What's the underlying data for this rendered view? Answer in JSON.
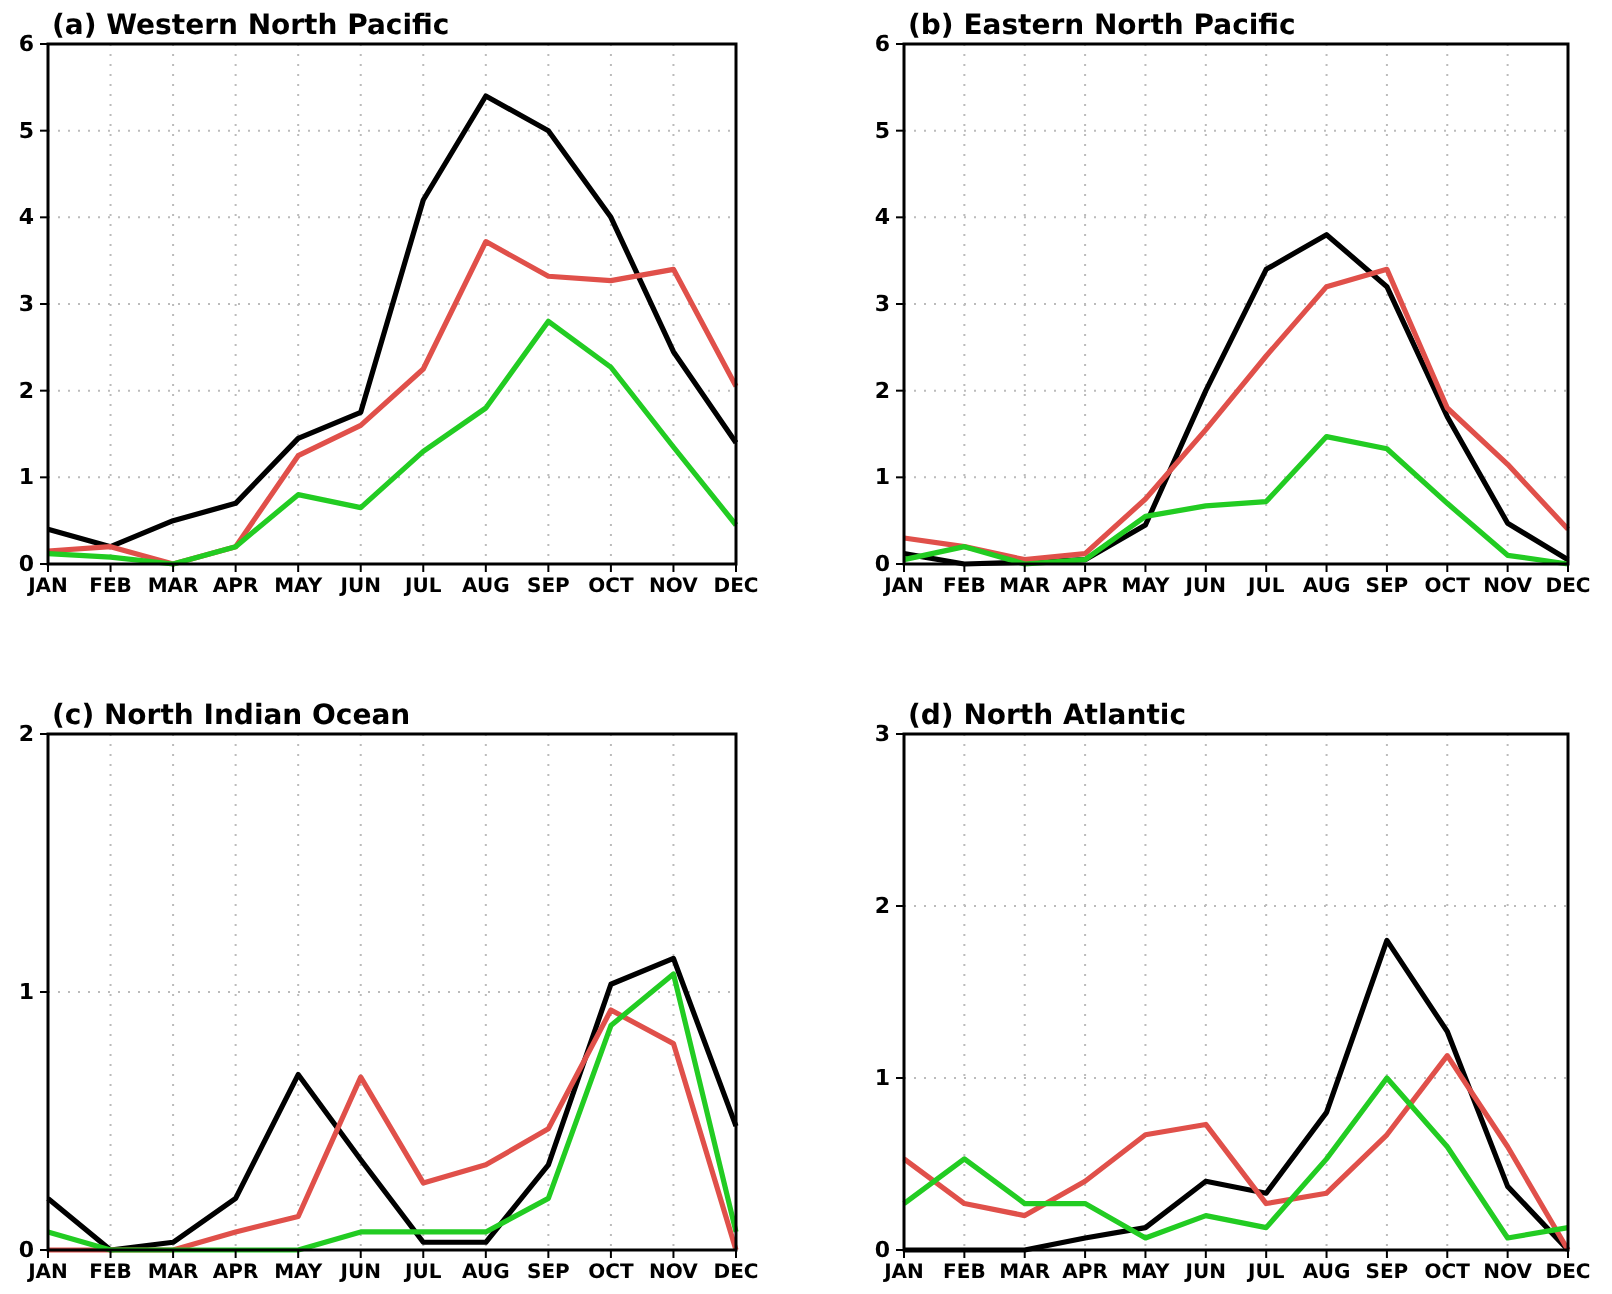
{
  "chart_data": [
    {
      "type": "line",
      "title": "(a) Western North Pacific",
      "categories": [
        "JAN",
        "FEB",
        "MAR",
        "APR",
        "MAY",
        "JUN",
        "JUL",
        "AUG",
        "SEP",
        "OCT",
        "NOV",
        "DEC"
      ],
      "ylim": [
        0,
        6
      ],
      "yticks": [
        0,
        1,
        2,
        3,
        4,
        5,
        6
      ],
      "grid": true,
      "line_style": "solid",
      "series": [
        {
          "color": "#000000",
          "values": [
            0.4,
            0.2,
            0.5,
            0.7,
            1.45,
            1.75,
            4.2,
            5.4,
            5.0,
            4.0,
            2.45,
            1.4
          ]
        },
        {
          "color": "#e0504a",
          "values": [
            0.15,
            0.2,
            0,
            0.2,
            1.25,
            1.6,
            2.25,
            3.72,
            3.32,
            3.27,
            3.4,
            2.05
          ]
        },
        {
          "color": "#22cc22",
          "values": [
            0.12,
            0.08,
            0,
            0.2,
            0.8,
            0.65,
            1.3,
            1.8,
            2.8,
            2.27,
            1.35,
            0.45
          ]
        }
      ]
    },
    {
      "type": "line",
      "title": "(b) Eastern North Pacific",
      "categories": [
        "JAN",
        "FEB",
        "MAR",
        "APR",
        "MAY",
        "JUN",
        "JUL",
        "AUG",
        "SEP",
        "OCT",
        "NOV",
        "DEC"
      ],
      "ylim": [
        0,
        6
      ],
      "yticks": [
        0,
        1,
        2,
        3,
        4,
        5,
        6
      ],
      "grid": true,
      "line_style": "solid",
      "series": [
        {
          "color": "#000000",
          "values": [
            0.12,
            0,
            0.02,
            0.05,
            0.45,
            2.0,
            3.4,
            3.8,
            3.2,
            1.7,
            0.47,
            0.05
          ]
        },
        {
          "color": "#e0504a",
          "values": [
            0.3,
            0.2,
            0.05,
            0.12,
            0.75,
            1.55,
            2.4,
            3.2,
            3.4,
            1.8,
            1.15,
            0.4
          ]
        },
        {
          "color": "#22cc22",
          "values": [
            0.05,
            0.2,
            0,
            0.05,
            0.55,
            0.67,
            0.72,
            1.47,
            1.33,
            0.7,
            0.1,
            0
          ]
        }
      ]
    },
    {
      "type": "line",
      "title": "(c) North Indian Ocean",
      "categories": [
        "JAN",
        "FEB",
        "MAR",
        "APR",
        "MAY",
        "JUN",
        "JUL",
        "AUG",
        "SEP",
        "OCT",
        "NOV",
        "DEC"
      ],
      "ylim": [
        0,
        2
      ],
      "yticks": [
        0,
        1,
        2
      ],
      "grid": true,
      "line_style": "solid",
      "series": [
        {
          "color": "#000000",
          "values": [
            0.2,
            0,
            0.03,
            0.2,
            0.68,
            0.35,
            0.03,
            0.03,
            0.33,
            1.03,
            1.13,
            0.48
          ]
        },
        {
          "color": "#e0504a",
          "values": [
            0,
            0,
            0,
            0.07,
            0.13,
            0.67,
            0.26,
            0.33,
            0.47,
            0.93,
            0.8,
            0
          ]
        },
        {
          "color": "#22cc22",
          "values": [
            0.07,
            0,
            0,
            0,
            0,
            0.07,
            0.07,
            0.07,
            0.2,
            0.87,
            1.07,
            0.07
          ]
        }
      ]
    },
    {
      "type": "line",
      "title": "(d) North Atlantic",
      "categories": [
        "JAN",
        "FEB",
        "MAR",
        "APR",
        "MAY",
        "JUN",
        "JUL",
        "AUG",
        "SEP",
        "OCT",
        "NOV",
        "DEC"
      ],
      "ylim": [
        0,
        3
      ],
      "yticks": [
        0,
        1,
        2,
        3
      ],
      "grid": true,
      "line_style": "solid",
      "series": [
        {
          "color": "#000000",
          "values": [
            0,
            0,
            0,
            0.07,
            0.13,
            0.4,
            0.33,
            0.8,
            1.8,
            1.27,
            0.37,
            0
          ]
        },
        {
          "color": "#e0504a",
          "values": [
            0.53,
            0.27,
            0.2,
            0.4,
            0.67,
            0.73,
            0.27,
            0.33,
            0.67,
            1.13,
            0.6,
            0
          ]
        },
        {
          "color": "#22cc22",
          "values": [
            0.27,
            0.53,
            0.27,
            0.27,
            0.07,
            0.2,
            0.13,
            0.53,
            1.0,
            0.6,
            0.07,
            0.13
          ]
        }
      ]
    }
  ]
}
